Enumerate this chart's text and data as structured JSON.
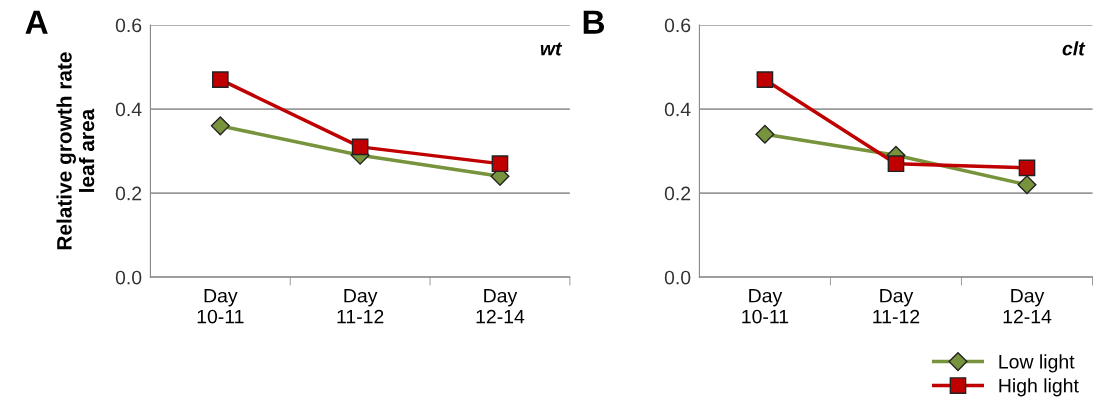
{
  "chart_data": [
    {
      "type": "line",
      "title": "A",
      "ylabel": "Relative growth rate\nleaf area",
      "annotations": [
        "wt"
      ],
      "categories": [
        "Day\n10-11",
        "Day\n11-12",
        "Day\n12-14"
      ],
      "ylim": [
        0,
        0.6
      ],
      "yticks": [
        {
          "value": 0,
          "label": "0.0"
        },
        0.2,
        0.4,
        0.6
      ],
      "grid": "y",
      "legend": false,
      "series": [
        {
          "color": "#77933c",
          "marker": "diamond",
          "values": [
            0.36,
            0.29,
            0.24
          ]
        },
        {
          "color": "#c00000",
          "marker": "square",
          "values": [
            0.47,
            0.31,
            0.27
          ]
        }
      ]
    },
    {
      "type": "line",
      "title": "B",
      "annotations": [
        "clt"
      ],
      "categories": [
        "Day\n10-11",
        "Day\n11-12",
        "Day\n12-14"
      ],
      "ylim": [
        0,
        0.6
      ],
      "yticks": [
        {
          "value": 0,
          "label": "0.0"
        },
        0.2,
        0.4,
        0.6
      ],
      "grid": "y",
      "legend": "bottom right",
      "series": [
        {
          "name": "Low light",
          "color": "#77933c",
          "marker": "diamond",
          "values": [
            0.34,
            0.29,
            0.22
          ]
        },
        {
          "name": "High light",
          "color": "#c00000",
          "marker": "square",
          "values": [
            0.47,
            0.27,
            0.26
          ]
        }
      ]
    }
  ]
}
